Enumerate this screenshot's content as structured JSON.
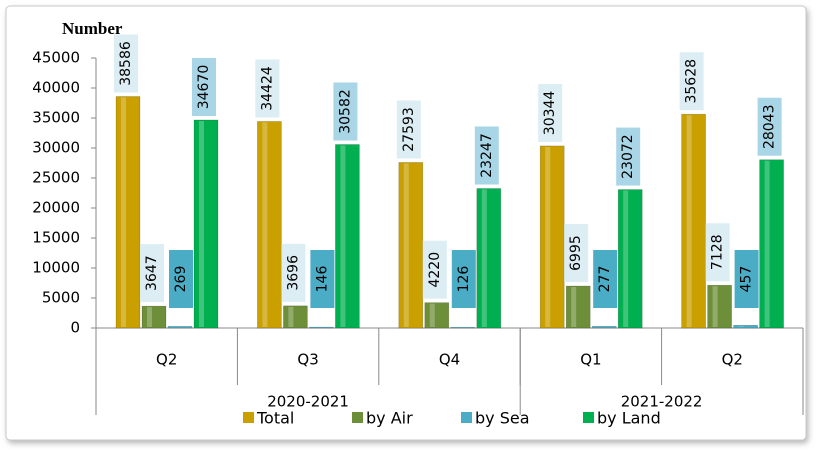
{
  "chart_data": {
    "type": "bar",
    "y_label": "Number",
    "categories": [
      "Q2",
      "Q3",
      "Q4",
      "Q1",
      "Q2"
    ],
    "category_groups": [
      {
        "label": "2020-2021",
        "span": 3
      },
      {
        "label": "2021-2022",
        "span": 2
      }
    ],
    "series": [
      {
        "name": "Total",
        "color": "#c9a000",
        "label_color": "#dcedf3",
        "values": [
          38586,
          34424,
          27593,
          30344,
          35628
        ]
      },
      {
        "name": "by Air",
        "color": "#6e8f3a",
        "label_color": "#dcedf3",
        "values": [
          3647,
          3696,
          4220,
          6995,
          7128
        ]
      },
      {
        "name": "by Sea",
        "color": "#4bacc6",
        "label_color": "#4bacc6",
        "values": [
          269,
          146,
          126,
          277,
          457
        ]
      },
      {
        "name": "by Land",
        "color": "#00b050",
        "label_color": "#a9d6e6",
        "values": [
          34670,
          30582,
          23247,
          23072,
          28043
        ]
      }
    ],
    "ylim": [
      0,
      45000
    ],
    "yticks": [
      0,
      5000,
      10000,
      15000,
      20000,
      25000,
      30000,
      35000,
      40000,
      45000
    ],
    "grid": false
  }
}
